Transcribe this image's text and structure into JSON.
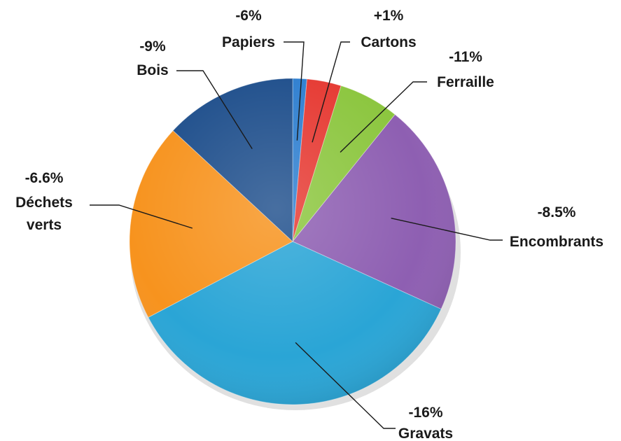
{
  "chart_data": {
    "type": "pie",
    "categories": [
      "Papiers",
      "Cartons",
      "Ferraille",
      "Encombrants",
      "Gravats",
      "Déchets verts",
      "Bois"
    ],
    "label_lines": [
      [
        "Papiers"
      ],
      [
        "Cartons"
      ],
      [
        "Ferraille"
      ],
      [
        "Encombrants"
      ],
      [
        "Gravats"
      ],
      [
        "Déchets",
        "verts"
      ],
      [
        "Bois"
      ]
    ],
    "shares_percent": [
      1.4,
      3.4,
      6.0,
      21.0,
      35.5,
      19.6,
      13.1
    ],
    "changes": [
      "-6%",
      "+1%",
      "-11%",
      "-8.5%",
      "-16%",
      "-6.6%",
      "-9%"
    ],
    "colors": [
      "#2f7fd0",
      "#e63a33",
      "#8cc63f",
      "#8e5fb2",
      "#2aa5d6",
      "#f7931e",
      "#1f4f8c"
    ],
    "start_angle_deg": 0,
    "direction": "clockwise"
  }
}
